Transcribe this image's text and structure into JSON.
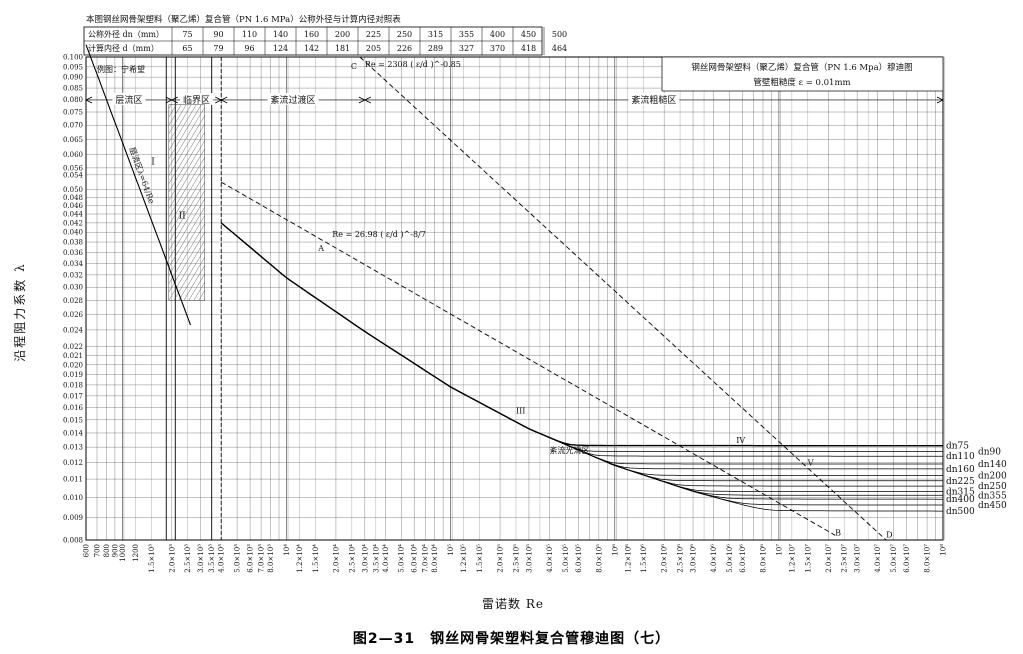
{
  "caption": "图2—31　钢丝网骨架塑料复合管穆迪图（七）",
  "table": {
    "title": "本图钢丝网骨架塑料（聚乙烯）复合管（PN 1.6 MPa）公称外径与计算内径对照表",
    "row1_label": "公称外径 dn（mm）",
    "row2_label": "计算内径 d（mm）",
    "dn": [
      "75",
      "90",
      "110",
      "140",
      "160",
      "200",
      "225",
      "250",
      "315",
      "355",
      "400",
      "450",
      "500"
    ],
    "d": [
      "65",
      "79",
      "96",
      "124",
      "142",
      "181",
      "205",
      "226",
      "289",
      "327",
      "370",
      "418",
      "464"
    ]
  },
  "chart_data": {
    "type": "line",
    "title": "钢丝网骨架塑料（聚乙烯）复合管（PN 1.6 Mpa）穆迪图",
    "subtitle": "管壁粗糙度 ε = 0.01mm",
    "example_label": "例图：宁希望",
    "xlabel": "雷诺数 Re",
    "ylabel": "沿程阻力系数 λ",
    "x_scale": "log",
    "y_scale": "log",
    "xlim": [
      600,
      100000000
    ],
    "ylim": [
      0.008,
      0.1
    ],
    "grid": true,
    "y_ticks": [
      "0.100",
      "0.095",
      "0.090",
      "0.085",
      "0.080",
      "0.075",
      "0.070",
      "0.065",
      "0.060",
      "0.056",
      "0.054",
      "0.050",
      "0.048",
      "0.046",
      "0.044",
      "0.042",
      "0.040",
      "0.038",
      "0.036",
      "0.034",
      "0.032",
      "0.030",
      "0.028",
      "0.026",
      "0.024",
      "0.022",
      "0.021",
      "0.020",
      "0.019",
      "0.018",
      "0.017",
      "0.016",
      "0.015",
      "0.014",
      "0.013",
      "0.012",
      "0.011",
      "0.010",
      "0.009",
      "0.008"
    ],
    "x_ticks": [
      {
        "v": 600,
        "t": "600"
      },
      {
        "v": 700,
        "t": "700"
      },
      {
        "v": 800,
        "t": "800"
      },
      {
        "v": 900,
        "t": "900"
      },
      {
        "v": 1000,
        "t": "1000"
      },
      {
        "v": 1200,
        "t": "1200"
      },
      {
        "v": 1500,
        "t": "1.5×10³"
      },
      {
        "v": 2000,
        "t": "2.0×10³"
      },
      {
        "v": 2500,
        "t": "2.5×10³"
      },
      {
        "v": 3000,
        "t": "3.0×10³"
      },
      {
        "v": 3500,
        "t": "3.5×10³"
      },
      {
        "v": 4000,
        "t": "4.0×10³"
      },
      {
        "v": 5000,
        "t": "5.0×10³"
      },
      {
        "v": 6000,
        "t": "6.0×10³"
      },
      {
        "v": 7000,
        "t": "7.0×10³"
      },
      {
        "v": 8000,
        "t": "8.0×10³"
      },
      {
        "v": 10000,
        "t": "10⁴"
      },
      {
        "v": 12000,
        "t": "1.2×10⁴"
      },
      {
        "v": 15000,
        "t": "1.5×10⁴"
      },
      {
        "v": 20000,
        "t": "2.0×10⁴"
      },
      {
        "v": 25000,
        "t": "2.5×10⁴"
      },
      {
        "v": 30000,
        "t": "3.0×10⁴"
      },
      {
        "v": 35000,
        "t": "3.5×10⁴"
      },
      {
        "v": 40000,
        "t": "4.0×10⁴"
      },
      {
        "v": 50000,
        "t": "5.0×10⁴"
      },
      {
        "v": 60000,
        "t": "6.0×10⁴"
      },
      {
        "v": 70000,
        "t": "7.0×10⁴"
      },
      {
        "v": 80000,
        "t": "8.0×10⁴"
      },
      {
        "v": 100000,
        "t": "10⁵"
      },
      {
        "v": 120000,
        "t": "1.2×10⁵"
      },
      {
        "v": 150000,
        "t": "1.5×10⁵"
      },
      {
        "v": 200000,
        "t": "2.0×10⁵"
      },
      {
        "v": 250000,
        "t": "2.5×10⁵"
      },
      {
        "v": 300000,
        "t": "3.0×10⁵"
      },
      {
        "v": 400000,
        "t": "4.0×10⁵"
      },
      {
        "v": 500000,
        "t": "5.0×10⁵"
      },
      {
        "v": 600000,
        "t": "6.0×10⁵"
      },
      {
        "v": 800000,
        "t": "8.0×10⁵"
      },
      {
        "v": 1000000,
        "t": "10⁶"
      },
      {
        "v": 1200000,
        "t": "1.2×10⁶"
      },
      {
        "v": 1500000,
        "t": "1.5×10⁶"
      },
      {
        "v": 2000000,
        "t": "2.0×10⁶"
      },
      {
        "v": 2500000,
        "t": "2.5×10⁶"
      },
      {
        "v": 3000000,
        "t": "3.0×10⁶"
      },
      {
        "v": 4000000,
        "t": "4.0×10⁶"
      },
      {
        "v": 5000000,
        "t": "5.0×10⁶"
      },
      {
        "v": 6000000,
        "t": "6.0×10⁶"
      },
      {
        "v": 8000000,
        "t": "8.0×10⁶"
      },
      {
        "v": 10000000,
        "t": "10⁷"
      },
      {
        "v": 12000000,
        "t": "1.2×10⁷"
      },
      {
        "v": 15000000,
        "t": "1.5×10⁷"
      },
      {
        "v": 20000000,
        "t": "2.0×10⁷"
      },
      {
        "v": 25000000,
        "t": "2.5×10⁷"
      },
      {
        "v": 30000000,
        "t": "3.0×10⁷"
      },
      {
        "v": 40000000,
        "t": "4.0×10⁷"
      },
      {
        "v": 50000000,
        "t": "5.0×10⁷"
      },
      {
        "v": 60000000,
        "t": "6.0×10⁷"
      },
      {
        "v": 80000000,
        "t": "8.0×10⁷"
      },
      {
        "v": 100000000,
        "t": "10⁸"
      }
    ],
    "regions": [
      {
        "label": "层流区",
        "from": 600,
        "to": 2000
      },
      {
        "label": "临界区",
        "from": 2000,
        "to": 4000
      },
      {
        "label": "紊流过渡区",
        "from": 4000,
        "to": 30000
      },
      {
        "label": "紊流粗糙区",
        "from": 30000,
        "to": 100000000
      }
    ],
    "region_dividers": [
      1850,
      2100,
      3500,
      4000
    ],
    "laminar_line": {
      "label": "层流区λ=64/Re",
      "x": [
        600,
        2600
      ],
      "zone_label": "I"
    },
    "critical_zone": {
      "label": "II",
      "x": [
        2000,
        3000
      ],
      "y": [
        0.028,
        0.08
      ]
    },
    "annotations": [
      {
        "text": "Re = 2308 ( ε/d )^-0.85",
        "x": 30000,
        "y": 0.095,
        "label": "C"
      },
      {
        "text": "Re = 26.98 ( ε/d )^-8/7",
        "x": 19000,
        "y": 0.039,
        "label": "A"
      },
      {
        "text": "III",
        "x": 250000,
        "y": 0.0155
      },
      {
        "text": "IV",
        "x": 5500000,
        "y": 0.0133
      },
      {
        "text": "V",
        "x": 15000000,
        "y": 0.0118
      },
      {
        "text": "紊流光滑区",
        "x": 400000,
        "y": 0.0126
      },
      {
        "text": "B",
        "x": 22000000,
        "y": 0.0082
      },
      {
        "text": "D",
        "x": 45000000,
        "y": 0.0081
      }
    ],
    "boundary_C": {
      "x": [
        28000,
        45000000
      ],
      "y": [
        0.1,
        0.008
      ]
    },
    "boundary_A": {
      "x": [
        4000,
        22000000
      ],
      "y": [
        0.052,
        0.0082
      ]
    },
    "smooth_curve": {
      "x": [
        4000,
        10000,
        30000,
        100000,
        300000,
        1000000,
        3000000,
        10000000
      ],
      "y": [
        0.042,
        0.0315,
        0.0238,
        0.0178,
        0.0143,
        0.0118,
        0.0103,
        0.0091
      ]
    },
    "series": [
      {
        "name": "dn75",
        "values": [
          0.0131
        ]
      },
      {
        "name": "dn90",
        "values": [
          0.0127
        ]
      },
      {
        "name": "dn110",
        "values": [
          0.0124
        ]
      },
      {
        "name": "dn140",
        "values": [
          0.0119
        ]
      },
      {
        "name": "dn160",
        "values": [
          0.0116
        ]
      },
      {
        "name": "dn200",
        "values": [
          0.0112
        ]
      },
      {
        "name": "dn225",
        "values": [
          0.0109
        ]
      },
      {
        "name": "dn250",
        "values": [
          0.0106
        ]
      },
      {
        "name": "dn315",
        "values": [
          0.0103
        ]
      },
      {
        "name": "dn355",
        "values": [
          0.0101
        ]
      },
      {
        "name": "dn400",
        "values": [
          0.0099
        ]
      },
      {
        "name": "dn450",
        "values": [
          0.0096
        ]
      },
      {
        "name": "dn500",
        "values": [
          0.0093
        ]
      }
    ]
  }
}
